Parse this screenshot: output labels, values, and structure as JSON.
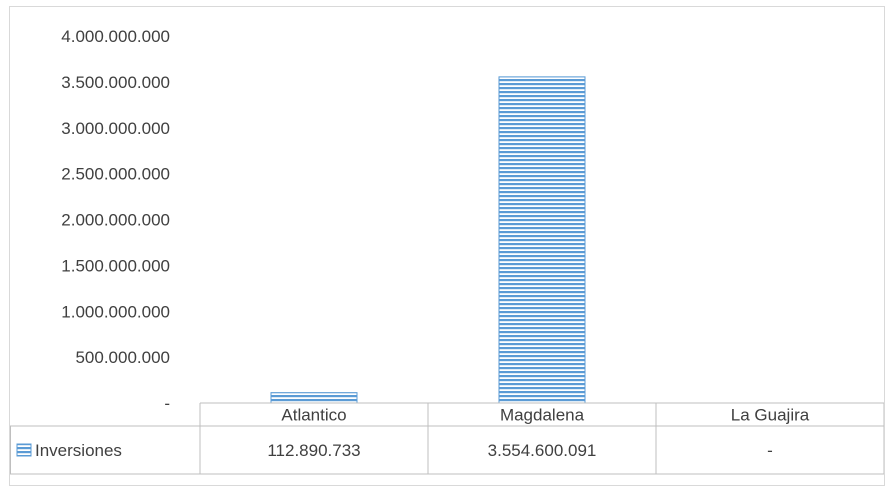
{
  "chart_data": {
    "type": "bar",
    "categories": [
      "Atlantico",
      "Magdalena",
      "La Guajira"
    ],
    "series": [
      {
        "name": "Inversiones",
        "values": [
          112890733,
          3554600091,
          0
        ],
        "display_values": [
          "112.890.733",
          "3.554.600.091",
          "-"
        ],
        "color": "#5b9bd5",
        "fill_pattern": "horizontal-stripes"
      }
    ],
    "ylim": [
      0,
      4000000000
    ],
    "y_ticks": [
      {
        "value": 0,
        "label": "-"
      },
      {
        "value": 500000000,
        "label": "500.000.000"
      },
      {
        "value": 1000000000,
        "label": "1.000.000.000"
      },
      {
        "value": 1500000000,
        "label": "1.500.000.000"
      },
      {
        "value": 2000000000,
        "label": "2.000.000.000"
      },
      {
        "value": 2500000000,
        "label": "2.500.000.000"
      },
      {
        "value": 3000000000,
        "label": "3.000.000.000"
      },
      {
        "value": 3500000000,
        "label": "3.500.000.000"
      },
      {
        "value": 4000000000,
        "label": "4.000.000.000"
      }
    ],
    "grid": false,
    "legend": "data-table",
    "data_table": true
  }
}
